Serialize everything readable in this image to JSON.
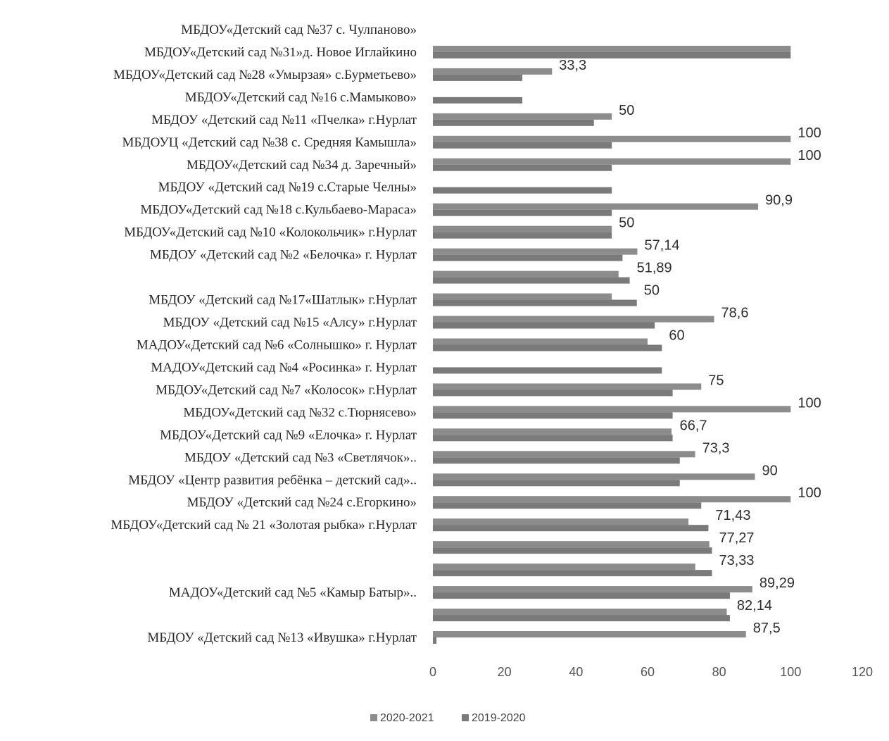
{
  "chart_data": {
    "type": "bar",
    "orientation": "horizontal",
    "categories": [
      "МБДОУ«Детский сад №37 с. Чулпаново»",
      "МБДОУ«Детский сад №31»д. Новое Иглайкино",
      "МБДОУ«Детский сад №28 «Умырзая» с.Бурметьево»",
      "МБДОУ«Детский сад №16 с.Мамыково»",
      "МБДОУ «Детский сад №11 «Пчелка» г.Нурлат",
      "МБДОУЦ «Детский сад №38  с. Средняя Камышла»",
      "МБДОУ«Детский сад №34 д. Заречный»",
      "МБДОУ  «Детский сад №19 с.Старые Челны»",
      "МБДОУ«Детский сад №18 с.Кульбаево-Мараса»",
      "МБДОУ«Детский сад №10 «Колокольчик» г.Нурлат",
      "МБДОУ  «Детский сад №2 «Белочка» г. Нурлат",
      "",
      "МБДОУ «Детский сад №17«Шатлык» г.Нурлат",
      "МБДОУ «Детский сад №15 «Алсу» г.Нурлат",
      "МАДОУ«Детский сад №6 «Солнышко» г. Нурлат",
      "МАДОУ«Детский сад №4 «Росинка» г. Нурлат",
      "МБДОУ«Детский сад №7 «Колосок» г.Нурлат",
      "МБДОУ«Детский сад №32 с.Тюрнясево»",
      "МБДОУ«Детский сад №9 «Елочка» г. Нурлат",
      "МБДОУ «Детский сад №3 «Светлячок»..",
      "МБДОУ «Центр развития ребёнка – детский сад»..",
      "МБДОУ «Детский сад №24 с.Егоркино»",
      "МБДОУ«Детский сад № 21 «Золотая рыбка» г.Нурлат",
      "",
      "",
      "МАДОУ«Детский сад №5 «Камыр Батыр»..",
      "",
      "МБДОУ «Детский сад №13 «Ивушка» г.Нурлат"
    ],
    "series": [
      {
        "name": "2020-2021",
        "values": [
          0,
          100,
          33.3,
          0,
          50,
          100,
          100,
          0,
          90.9,
          50,
          57.14,
          51.89,
          50,
          78.6,
          60,
          0,
          75,
          100,
          66.7,
          73.3,
          90,
          100,
          71.43,
          77.27,
          73.33,
          89.29,
          82.14,
          87.5
        ],
        "labels": [
          "",
          "",
          "33,3",
          "",
          "50",
          "100",
          "100",
          "",
          "90,9",
          "50",
          "57,14",
          "51,89",
          "50",
          "78,6",
          "60",
          "",
          "75",
          "100",
          "66,7",
          "73,3",
          "90",
          "100",
          "71,43",
          "77,27",
          "73,33",
          "89,29",
          "82,14",
          "87,5"
        ]
      },
      {
        "name": "2019-2020",
        "values": [
          0,
          100,
          25,
          25,
          45,
          50,
          50,
          50,
          50,
          50,
          53,
          55,
          57,
          62,
          64,
          64,
          67,
          67,
          67,
          69,
          69,
          75,
          77,
          78,
          78,
          83,
          83,
          1
        ]
      }
    ],
    "xlim": [
      0,
      120
    ],
    "xticks": [
      "0",
      "20",
      "40",
      "60",
      "80",
      "100",
      "120"
    ],
    "grid": false,
    "legend_position": "bottom-center",
    "colors": {
      "2020-2021": "#8c8c8c",
      "2019-2020": "#7a7a7a"
    }
  }
}
